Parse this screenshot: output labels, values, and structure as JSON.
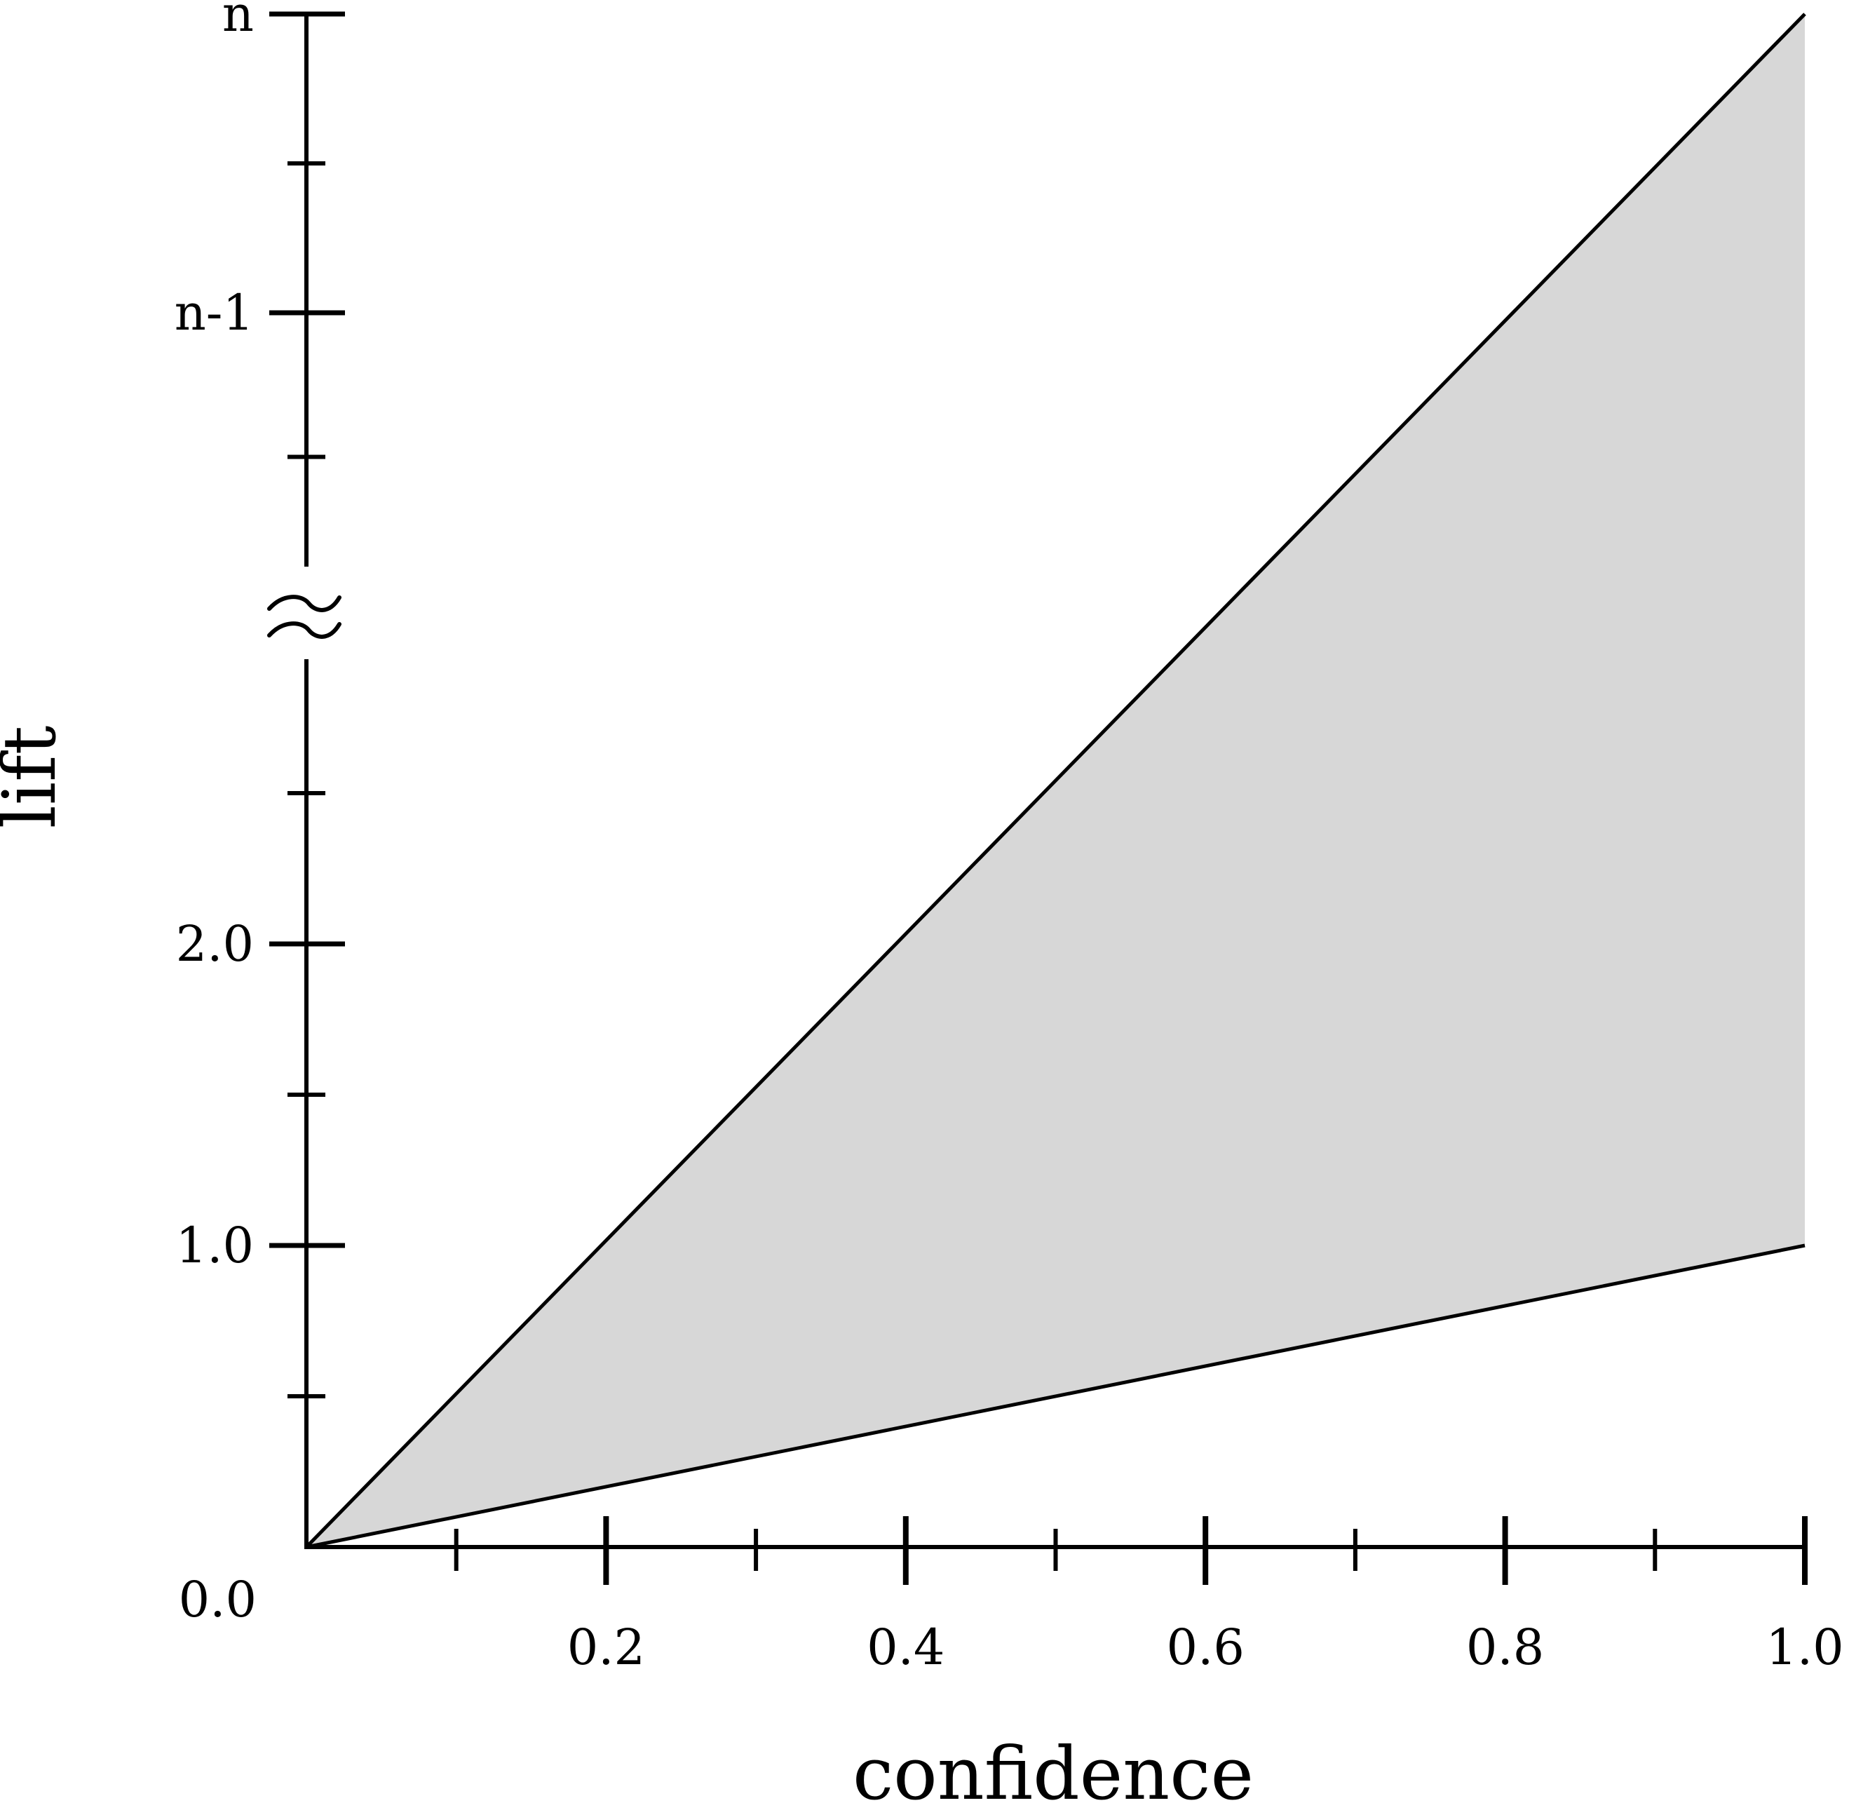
{
  "chart_data": {
    "type": "area",
    "title": "",
    "xlabel": "confidence",
    "ylabel": "lift",
    "xlim": [
      0.0,
      1.0
    ],
    "x_ticks": [
      {
        "value": 0.2,
        "label": "0.2"
      },
      {
        "value": 0.4,
        "label": "0.4"
      },
      {
        "value": 0.6,
        "label": "0.6"
      },
      {
        "value": 0.8,
        "label": "0.8"
      },
      {
        "value": 1.0,
        "label": "1.0"
      }
    ],
    "x_minor_ticks": [
      0.1,
      0.3,
      0.5,
      0.7,
      0.9
    ],
    "origin_label": "0.0",
    "y_ticks": [
      {
        "key": "1.0",
        "label": "1.0"
      },
      {
        "key": "2.0",
        "label": "2.0"
      },
      {
        "key": "n-1",
        "label": "n-1"
      },
      {
        "key": "n",
        "label": "n"
      }
    ],
    "y_axis_break": true,
    "y_axis_break_symbol": "≈",
    "series": [
      {
        "role": "upper-bound",
        "x": [
          0.0,
          1.0
        ],
        "y": [
          "0.0",
          "n"
        ]
      },
      {
        "role": "lower-bound",
        "x": [
          0.0,
          1.0
        ],
        "y": [
          0.0,
          1.0
        ]
      }
    ],
    "shaded_region": {
      "between": [
        "lower-bound",
        "upper-bound"
      ],
      "color": "#d7d7d7"
    },
    "line_color": "#000000",
    "grid": false,
    "legend": "none"
  }
}
